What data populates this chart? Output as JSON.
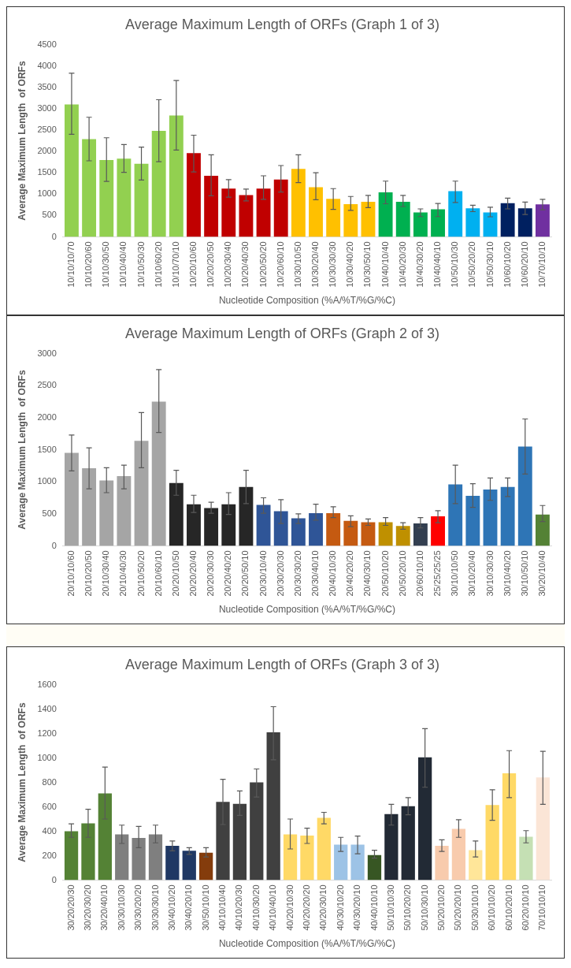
{
  "chart_data": [
    {
      "type": "bar",
      "title": "Average Maximum Length of ORFs (Graph 1 of 3)",
      "xlabel": "Nucleotide Composition (%A/%T/%G/%C)",
      "ylabel": "Average Maximum Length  of ORFs",
      "categories": [
        "10/10/10/70",
        "10/10/20/60",
        "10/10/30/50",
        "10/10/40/40",
        "10/10/50/30",
        "10/10/60/20",
        "10/10/70/10",
        "10/20/10/60",
        "10/20/20/50",
        "10/20/30/40",
        "10/20/40/30",
        "10/20/50/20",
        "10/20/60/10",
        "10/30/10/50",
        "10/30/20/40",
        "10/30/30/30",
        "10/30/40/20",
        "10/30/50/10",
        "10/40/10/40",
        "10/40/20/30",
        "10/40/30/20",
        "10/40/40/10",
        "10/50/10/30",
        "10/50/20/20",
        "10/50/30/10",
        "10/60/10/20",
        "10/60/20/10",
        "10/70/10/10"
      ],
      "values": [
        3100,
        2290,
        1800,
        1830,
        1710,
        2480,
        2840,
        1960,
        1430,
        1130,
        980,
        1130,
        1340,
        1590,
        1160,
        890,
        765,
        820,
        1040,
        820,
        570,
        645,
        1070,
        670,
        570,
        790,
        670,
        760
      ],
      "colors": [
        "#92d050",
        "#92d050",
        "#92d050",
        "#92d050",
        "#92d050",
        "#92d050",
        "#92d050",
        "#c00000",
        "#c00000",
        "#c00000",
        "#c00000",
        "#c00000",
        "#c00000",
        "#ffc000",
        "#ffc000",
        "#ffc000",
        "#ffc000",
        "#ffc000",
        "#00b050",
        "#00b050",
        "#00b050",
        "#00b050",
        "#00b0f0",
        "#00b0f0",
        "#00b0f0",
        "#002060",
        "#002060",
        "#7030a0"
      ],
      "errors": [
        [
          2400,
          3830
        ],
        [
          1780,
          2800
        ],
        [
          1300,
          2320
        ],
        [
          1510,
          2160
        ],
        [
          1330,
          2100
        ],
        [
          1760,
          3210
        ],
        [
          2030,
          3660
        ],
        [
          1520,
          2380
        ],
        [
          960,
          1920
        ],
        [
          930,
          1340
        ],
        [
          840,
          1120
        ],
        [
          880,
          1430
        ],
        [
          1050,
          1670
        ],
        [
          1270,
          1920
        ],
        [
          870,
          1500
        ],
        [
          645,
          1130
        ],
        [
          620,
          945
        ],
        [
          685,
          970
        ],
        [
          775,
          1305
        ],
        [
          710,
          970
        ],
        [
          475,
          655
        ],
        [
          475,
          780
        ],
        [
          805,
          1305
        ],
        [
          590,
          740
        ],
        [
          470,
          695
        ],
        [
          655,
          905
        ],
        [
          525,
          815
        ],
        [
          635,
          880
        ]
      ],
      "ylim": [
        0,
        4500
      ],
      "yticks": [
        0,
        500,
        1000,
        1500,
        2000,
        2500,
        3000,
        3500,
        4000,
        4500
      ],
      "grid": false,
      "legend": false
    },
    {
      "type": "bar",
      "title": "Average Maximum Length of ORFs (Graph 2 of 3)",
      "xlabel": "Nucleotide Composition (%A/%T/%G/%C)",
      "ylabel": "Average Maximum Length  of ORFs",
      "categories": [
        "20/10/10/60",
        "20/10/20/50",
        "20/10/30/40",
        "20/10/40/30",
        "20/10/50/20",
        "20/10/60/10",
        "20/20/10/50",
        "20/20/20/40",
        "20/20/30/30",
        "20/20/40/20",
        "20/20/50/10",
        "20/30/10/40",
        "20/30/20/30",
        "20/30/30/20",
        "20/30/40/10",
        "20/40/10/30",
        "20/40/20/20",
        "20/40/30/10",
        "20/50/10/20",
        "20/50/20/10",
        "20/60/10/10",
        "25/25/25/25",
        "30/10/10/50",
        "30/10/20/40",
        "30/10/30/30",
        "30/10/40/20",
        "30/10/50/10",
        "30/20/10/40"
      ],
      "values": [
        1450,
        1210,
        1020,
        1090,
        1640,
        2250,
        980,
        650,
        590,
        650,
        920,
        640,
        540,
        430,
        510,
        510,
        390,
        370,
        370,
        310,
        350,
        460,
        960,
        780,
        880,
        920,
        1550,
        490
      ],
      "colors": [
        "#a5a5a5",
        "#a5a5a5",
        "#a5a5a5",
        "#a5a5a5",
        "#a5a5a5",
        "#a5a5a5",
        "#262626",
        "#262626",
        "#262626",
        "#262626",
        "#262626",
        "#2f5597",
        "#2f5597",
        "#2f5597",
        "#2f5597",
        "#c55a11",
        "#c55a11",
        "#c55a11",
        "#bf9000",
        "#bf9000",
        "#333f50",
        "#ff0000",
        "#2e75b6",
        "#2e75b6",
        "#2e75b6",
        "#2e75b6",
        "#2e75b6",
        "#548235"
      ],
      "errors": [
        [
          1170,
          1730
        ],
        [
          890,
          1530
        ],
        [
          830,
          1220
        ],
        [
          890,
          1260
        ],
        [
          1220,
          2080
        ],
        [
          1770,
          2750
        ],
        [
          790,
          1180
        ],
        [
          520,
          790
        ],
        [
          510,
          680
        ],
        [
          490,
          830
        ],
        [
          660,
          1180
        ],
        [
          510,
          750
        ],
        [
          350,
          720
        ],
        [
          350,
          500
        ],
        [
          400,
          650
        ],
        [
          440,
          610
        ],
        [
          300,
          470
        ],
        [
          320,
          420
        ],
        [
          320,
          440
        ],
        [
          260,
          360
        ],
        [
          280,
          440
        ],
        [
          360,
          550
        ],
        [
          660,
          1260
        ],
        [
          600,
          970
        ],
        [
          710,
          1060
        ],
        [
          770,
          1060
        ],
        [
          1120,
          1980
        ],
        [
          380,
          630
        ]
      ],
      "ylim": [
        0,
        3000
      ],
      "yticks": [
        0,
        500,
        1000,
        1500,
        2000,
        2500,
        3000
      ],
      "grid": false,
      "legend": false
    },
    {
      "type": "bar",
      "title": "Average Maximum Length of ORFs (Graph 3 of 3)",
      "xlabel": "Nucleotide Composition (%A/%T/%G/%C)",
      "ylabel": "Average Maximum Length  of ORFs",
      "categories": [
        "30/20/20/30",
        "30/20/30/20",
        "30/20/40/10",
        "30/30/10/30",
        "30/30/20/20",
        "30/30/30/10",
        "30/40/10/20",
        "30/40/20/10",
        "30/50/10/10",
        "40/10/10/40",
        "40/10/20/30",
        "40/10/30/20",
        "40/10/40/10",
        "40/20/10/30",
        "40/20/20/20",
        "40/20/30/10",
        "40/30/10/20",
        "40/30/20/10",
        "40/40/10/10",
        "50/10/10/30",
        "50/10/20/20",
        "50/10/30/10",
        "50/20/10/20",
        "50/20/20/10",
        "50/30/10/10",
        "60/10/10/20",
        "60/10/20/10",
        "60/20/10/10",
        "70/10/10/10"
      ],
      "values": [
        400,
        465,
        710,
        375,
        345,
        375,
        280,
        240,
        225,
        640,
        625,
        800,
        1210,
        375,
        365,
        510,
        290,
        290,
        205,
        540,
        605,
        1005,
        280,
        420,
        245,
        615,
        875,
        355,
        840
      ],
      "colors": [
        "#548235",
        "#548235",
        "#548235",
        "#7f7f7f",
        "#7f7f7f",
        "#7f7f7f",
        "#203864",
        "#203864",
        "#843c0c",
        "#404040",
        "#404040",
        "#404040",
        "#404040",
        "#ffd966",
        "#ffd966",
        "#ffd966",
        "#9dc3e6",
        "#9dc3e6",
        "#375623",
        "#222a35",
        "#222a35",
        "#222a35",
        "#f8cbad",
        "#f8cbad",
        "#ffe699",
        "#ffd966",
        "#ffd966",
        "#c5e0b4",
        "#fbe5d6"
      ],
      "errors": [
        [
          350,
          460
        ],
        [
          350,
          580
        ],
        [
          500,
          925
        ],
        [
          300,
          450
        ],
        [
          265,
          440
        ],
        [
          305,
          450
        ],
        [
          240,
          320
        ],
        [
          210,
          265
        ],
        [
          190,
          265
        ],
        [
          455,
          825
        ],
        [
          530,
          730
        ],
        [
          680,
          910
        ],
        [
          985,
          1420
        ],
        [
          255,
          500
        ],
        [
          300,
          425
        ],
        [
          460,
          555
        ],
        [
          235,
          350
        ],
        [
          215,
          360
        ],
        [
          180,
          245
        ],
        [
          450,
          620
        ],
        [
          535,
          675
        ],
        [
          760,
          1240
        ],
        [
          235,
          330
        ],
        [
          350,
          495
        ],
        [
          190,
          320
        ],
        [
          490,
          740
        ],
        [
          675,
          1060
        ],
        [
          305,
          405
        ],
        [
          620,
          1055
        ]
      ],
      "ylim": [
        0,
        1600
      ],
      "yticks": [
        0,
        200,
        400,
        600,
        800,
        1000,
        1200,
        1400,
        1600
      ],
      "grid": false,
      "legend": false
    }
  ]
}
